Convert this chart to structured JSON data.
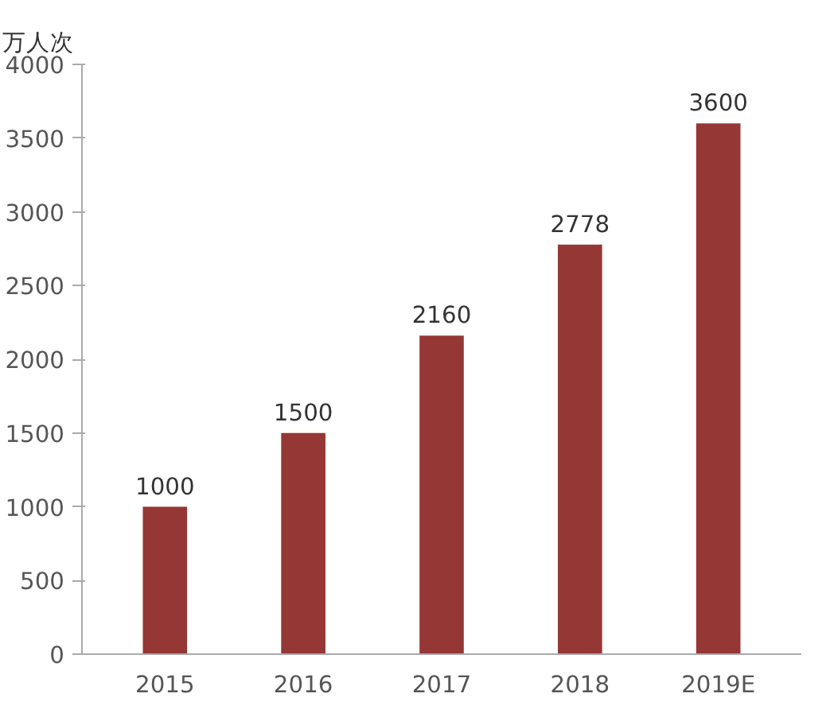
{
  "chart_data": {
    "type": "bar",
    "ylabel": "万人次",
    "categories": [
      "2015",
      "2016",
      "2017",
      "2018",
      "2019E"
    ],
    "values": [
      1000,
      1500,
      2160,
      2778,
      3600
    ],
    "color": "#953735",
    "ylim": [
      0,
      4000
    ],
    "yticks": [
      0,
      500,
      1000,
      1500,
      2000,
      2500,
      3000,
      3500,
      4000
    ],
    "data_labels": true,
    "grid": false
  }
}
